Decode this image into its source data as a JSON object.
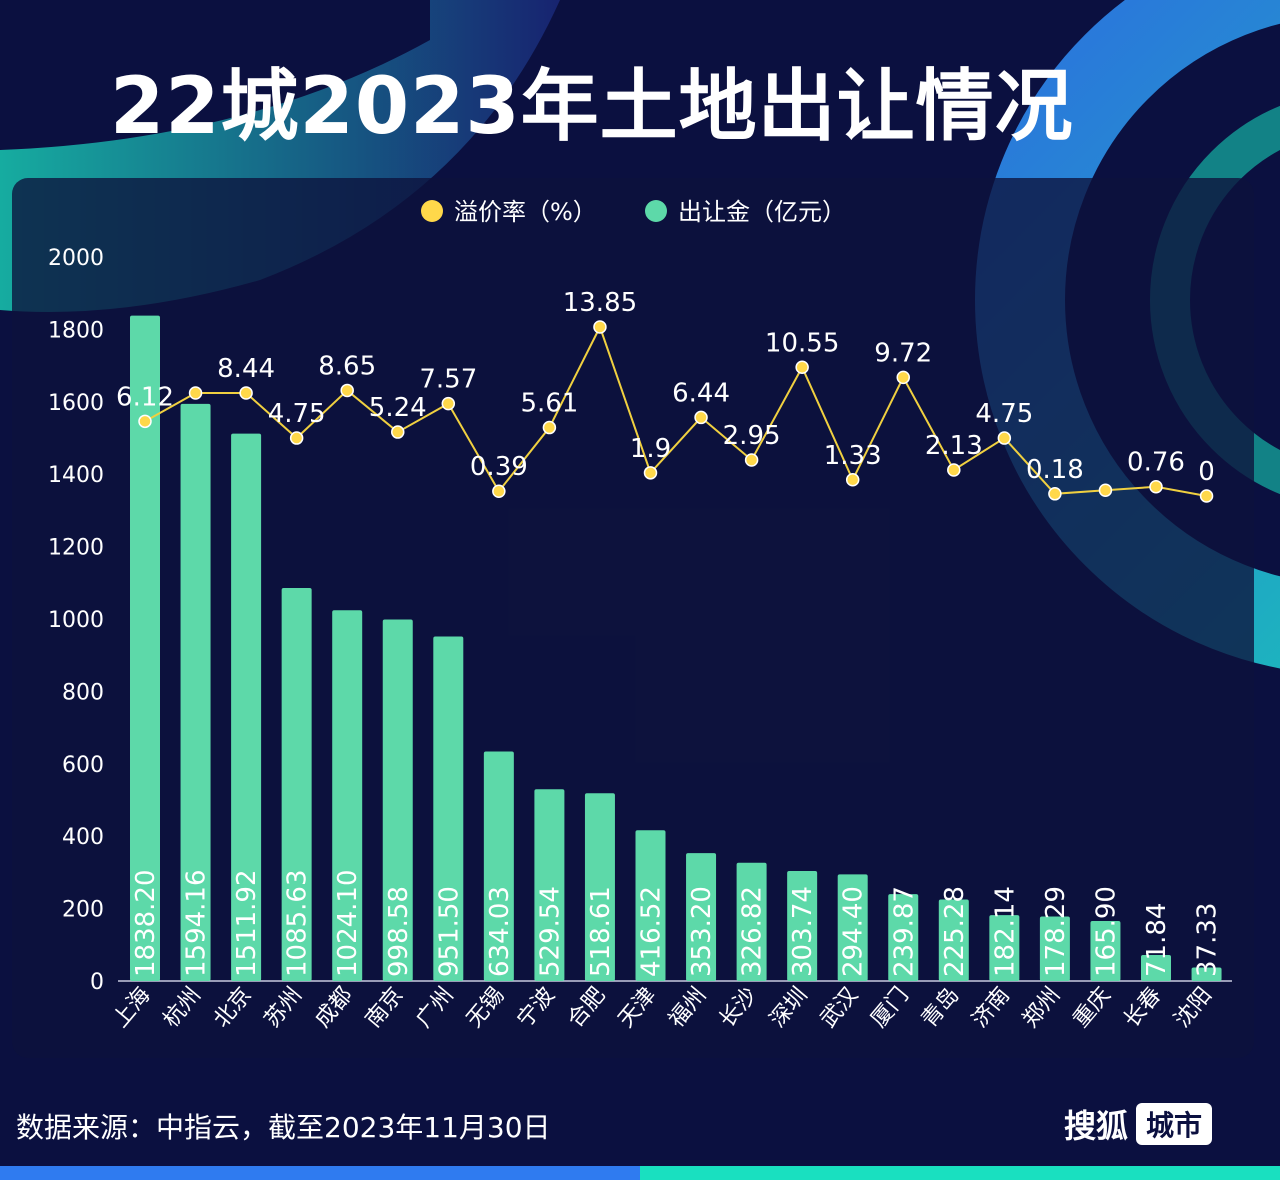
{
  "title": "22城2023年土地出让情况",
  "footer": {
    "source": "数据来源：中指云，截至2023年11月30日",
    "brand_name": "搜狐",
    "brand_tag": "城市"
  },
  "colors": {
    "background": "#0b1040",
    "bar": "#5dd9a9",
    "line": "#f0d040",
    "point": "#ffd84a",
    "accent_blue": "#2f7bf0",
    "accent_teal": "#19e0c0"
  },
  "chart_data": {
    "type": "bar",
    "categories": [
      "上海",
      "杭州",
      "北京",
      "苏州",
      "成都",
      "南京",
      "广州",
      "无锡",
      "宁波",
      "合肥",
      "天津",
      "福州",
      "长沙",
      "深圳",
      "武汉",
      "厦门",
      "青岛",
      "济南",
      "郑州",
      "重庆",
      "长春",
      "沈阳"
    ],
    "series": [
      {
        "name": "出让金（亿元）",
        "type": "bar",
        "values": [
          1838.2,
          1594.16,
          1511.92,
          1085.63,
          1024.1,
          998.58,
          951.5,
          634.03,
          529.54,
          518.61,
          416.52,
          353.2,
          326.82,
          303.74,
          294.4,
          239.87,
          225.28,
          182.14,
          178.29,
          165.9,
          71.84,
          37.33
        ],
        "labels": [
          "1838.20",
          "1594.16",
          "1511.92",
          "1085.63",
          "1024.10",
          "998.58",
          "951.50",
          "634.03",
          "529.54",
          "518.61",
          "416.52",
          "353.20",
          "326.82",
          "303.74",
          "294.40",
          "239.87",
          "225.28",
          "182.14",
          "178.29",
          "165.90",
          "71.84",
          "37.33"
        ]
      },
      {
        "name": "溢价率（%）",
        "type": "line",
        "values": [
          6.12,
          8.44,
          8.44,
          4.75,
          8.65,
          5.24,
          7.57,
          0.39,
          5.61,
          13.85,
          1.9,
          6.44,
          2.95,
          10.55,
          1.33,
          9.72,
          2.13,
          4.75,
          0.18,
          null,
          0.76,
          0
        ],
        "labels": [
          "6.12",
          "",
          "8.44",
          "4.75",
          "8.65",
          "5.24",
          "7.57",
          "0.39",
          "5.61",
          "13.85",
          "1.9",
          "6.44",
          "2.95",
          "10.55",
          "1.33",
          "9.72",
          "2.13",
          "4.75",
          "0.18",
          "",
          "0.76",
          "0"
        ]
      }
    ],
    "yticks": [
      "0",
      "200",
      "400",
      "600",
      "800",
      "1000",
      "1200",
      "1400",
      "1600",
      "1800",
      "2000"
    ],
    "ylim": [
      0,
      2000
    ],
    "legend": [
      "溢价率（%）",
      "出让金（亿元）"
    ],
    "legend_position": "top-center",
    "grid": false
  }
}
